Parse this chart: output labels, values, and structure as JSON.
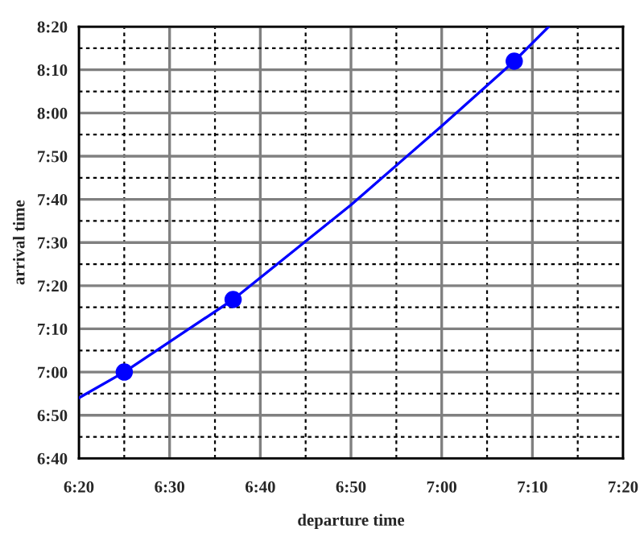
{
  "chart_data": {
    "type": "line",
    "xlabel": "departure time",
    "ylabel": "arrival time",
    "series": [
      {
        "color": "#0000ff",
        "x": [
          6.3333,
          6.4167,
          6.6167,
          6.8333,
          7.0,
          7.1333,
          7.1967
        ],
        "values": [
          6.9,
          7.0,
          7.28,
          7.645,
          7.95,
          8.2,
          8.3333
        ]
      },
      {
        "type": "scatter",
        "color": "#0000ff",
        "x": [
          6.4167,
          6.6167,
          7.1333
        ],
        "values": [
          7.0,
          7.28,
          8.2
        ]
      }
    ],
    "xlim": [
      6.3333,
      7.3333
    ],
    "ylim": [
      6.6667,
      8.3333
    ],
    "xticks": [
      {
        "value": 6.3333,
        "label": "6:20"
      },
      {
        "value": 6.5,
        "label": "6:30"
      },
      {
        "value": 6.6667,
        "label": "6:40"
      },
      {
        "value": 6.8333,
        "label": "6:50"
      },
      {
        "value": 7.0,
        "label": "7:00"
      },
      {
        "value": 7.1667,
        "label": "7:10"
      },
      {
        "value": 7.3333,
        "label": "7:20"
      }
    ],
    "yticks": [
      {
        "value": 6.6667,
        "label": "6:40"
      },
      {
        "value": 6.8333,
        "label": "6:50"
      },
      {
        "value": 7.0,
        "label": "7:00"
      },
      {
        "value": 7.1667,
        "label": "7:10"
      },
      {
        "value": 7.3333,
        "label": "7:20"
      },
      {
        "value": 7.5,
        "label": "7:30"
      },
      {
        "value": 7.6667,
        "label": "7:40"
      },
      {
        "value": 7.8333,
        "label": "7:50"
      },
      {
        "value": 8.0,
        "label": "8:00"
      },
      {
        "value": 8.1667,
        "label": "8:10"
      },
      {
        "value": 8.3333,
        "label": "8:20"
      }
    ],
    "grid": true
  }
}
